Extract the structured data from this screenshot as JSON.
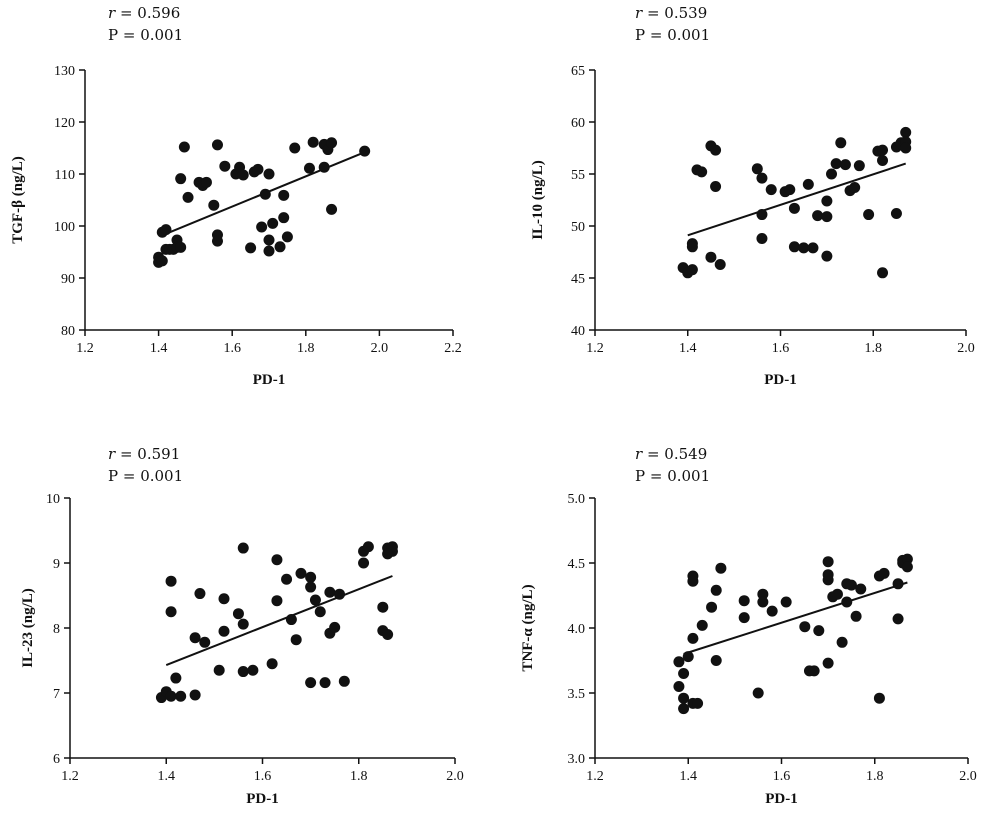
{
  "chart_data": [
    {
      "type": "scatter",
      "title": "",
      "stats": {
        "r_symbol": "r",
        "r_value": "= 0.596",
        "p_text": "P = 0.001"
      },
      "xlabel": "PD-1",
      "ylabel": "TGF-β (ng/L)",
      "xlim": [
        1.2,
        2.2
      ],
      "ylim": [
        80,
        130
      ],
      "xticks": [
        1.2,
        1.4,
        1.6,
        1.8,
        2.0,
        2.2
      ],
      "xtick_labels": [
        "1.2",
        "1.4",
        "1.6",
        "1.8",
        "2.0",
        "2.2"
      ],
      "yticks": [
        80,
        90,
        100,
        110,
        120,
        130
      ],
      "ytick_labels": [
        "80",
        "90",
        "100",
        "110",
        "120",
        "130"
      ],
      "grid": false,
      "fit_line": {
        "x": [
          1.42,
          1.96
        ],
        "y": [
          98.5,
          114.2
        ]
      },
      "points": [
        [
          1.4,
          94.0
        ],
        [
          1.4,
          93.0
        ],
        [
          1.41,
          93.3
        ],
        [
          1.41,
          98.8
        ],
        [
          1.42,
          99.3
        ],
        [
          1.42,
          95.5
        ],
        [
          1.43,
          95.5
        ],
        [
          1.44,
          95.5
        ],
        [
          1.45,
          97.3
        ],
        [
          1.45,
          95.9
        ],
        [
          1.46,
          95.9
        ],
        [
          1.46,
          109.1
        ],
        [
          1.47,
          115.2
        ],
        [
          1.48,
          105.5
        ],
        [
          1.51,
          108.4
        ],
        [
          1.52,
          107.8
        ],
        [
          1.53,
          108.4
        ],
        [
          1.55,
          104.0
        ],
        [
          1.56,
          115.6
        ],
        [
          1.56,
          98.3
        ],
        [
          1.56,
          97.1
        ],
        [
          1.58,
          111.5
        ],
        [
          1.61,
          110.0
        ],
        [
          1.62,
          111.3
        ],
        [
          1.63,
          109.8
        ],
        [
          1.65,
          95.8
        ],
        [
          1.66,
          110.4
        ],
        [
          1.67,
          110.9
        ],
        [
          1.68,
          99.8
        ],
        [
          1.69,
          106.1
        ],
        [
          1.7,
          110.0
        ],
        [
          1.7,
          97.3
        ],
        [
          1.7,
          95.2
        ],
        [
          1.71,
          100.5
        ],
        [
          1.73,
          96.0
        ],
        [
          1.74,
          101.6
        ],
        [
          1.74,
          105.9
        ],
        [
          1.75,
          97.9
        ],
        [
          1.77,
          115.0
        ],
        [
          1.81,
          111.1
        ],
        [
          1.82,
          116.1
        ],
        [
          1.85,
          111.3
        ],
        [
          1.85,
          115.7
        ],
        [
          1.86,
          114.7
        ],
        [
          1.87,
          116.0
        ],
        [
          1.87,
          103.2
        ],
        [
          1.96,
          114.4
        ]
      ]
    },
    {
      "type": "scatter",
      "title": "",
      "stats": {
        "r_symbol": "r",
        "r_value": "= 0.539",
        "p_text": "P = 0.001"
      },
      "xlabel": "PD-1",
      "ylabel": "IL-10 (ng/L)",
      "xlim": [
        1.2,
        2.0
      ],
      "ylim": [
        40,
        65
      ],
      "xticks": [
        1.2,
        1.4,
        1.6,
        1.8,
        2.0
      ],
      "xtick_labels": [
        "1.2",
        "1.4",
        "1.6",
        "1.8",
        "2.0"
      ],
      "yticks": [
        40,
        45,
        50,
        55,
        60,
        65
      ],
      "ytick_labels": [
        "40",
        "45",
        "50",
        "55",
        "60",
        "65"
      ],
      "grid": false,
      "fit_line": {
        "x": [
          1.4,
          1.87
        ],
        "y": [
          49.1,
          56.0
        ]
      },
      "points": [
        [
          1.39,
          46.0
        ],
        [
          1.4,
          45.5
        ],
        [
          1.41,
          45.8
        ],
        [
          1.41,
          48.3
        ],
        [
          1.41,
          48.0
        ],
        [
          1.42,
          55.4
        ],
        [
          1.43,
          55.2
        ],
        [
          1.45,
          47.0
        ],
        [
          1.45,
          57.7
        ],
        [
          1.46,
          57.3
        ],
        [
          1.46,
          53.8
        ],
        [
          1.47,
          46.3
        ],
        [
          1.55,
          55.5
        ],
        [
          1.56,
          54.6
        ],
        [
          1.56,
          51.1
        ],
        [
          1.56,
          48.8
        ],
        [
          1.58,
          53.5
        ],
        [
          1.61,
          53.3
        ],
        [
          1.62,
          53.5
        ],
        [
          1.63,
          51.7
        ],
        [
          1.63,
          48.0
        ],
        [
          1.65,
          47.9
        ],
        [
          1.66,
          54.0
        ],
        [
          1.67,
          47.9
        ],
        [
          1.68,
          51.0
        ],
        [
          1.7,
          52.4
        ],
        [
          1.7,
          50.9
        ],
        [
          1.7,
          47.1
        ],
        [
          1.71,
          55.0
        ],
        [
          1.72,
          56.0
        ],
        [
          1.73,
          58.0
        ],
        [
          1.74,
          55.9
        ],
        [
          1.75,
          53.4
        ],
        [
          1.76,
          53.7
        ],
        [
          1.77,
          55.8
        ],
        [
          1.79,
          51.1
        ],
        [
          1.81,
          57.2
        ],
        [
          1.82,
          57.3
        ],
        [
          1.82,
          56.3
        ],
        [
          1.82,
          45.5
        ],
        [
          1.85,
          57.6
        ],
        [
          1.85,
          51.2
        ],
        [
          1.86,
          58.0
        ],
        [
          1.86,
          57.9
        ],
        [
          1.87,
          59.0
        ],
        [
          1.87,
          58.1
        ],
        [
          1.87,
          57.5
        ]
      ]
    },
    {
      "type": "scatter",
      "title": "",
      "stats": {
        "r_symbol": "r",
        "r_value": "= 0.591",
        "p_text": "P = 0.001"
      },
      "xlabel": "PD-1",
      "ylabel": "IL-23 (ng/L)",
      "xlim": [
        1.2,
        2.0
      ],
      "ylim": [
        6,
        10
      ],
      "xticks": [
        1.2,
        1.4,
        1.6,
        1.8,
        2.0
      ],
      "xtick_labels": [
        "1.2",
        "1.4",
        "1.6",
        "1.8",
        "2.0"
      ],
      "yticks": [
        6,
        7,
        8,
        9,
        10
      ],
      "ytick_labels": [
        "6",
        "7",
        "8",
        "9",
        "10"
      ],
      "grid": false,
      "fit_line": {
        "x": [
          1.4,
          1.87
        ],
        "y": [
          7.43,
          8.8
        ]
      },
      "points": [
        [
          1.39,
          6.93
        ],
        [
          1.4,
          7.02
        ],
        [
          1.41,
          6.95
        ],
        [
          1.41,
          8.72
        ],
        [
          1.41,
          8.25
        ],
        [
          1.42,
          7.23
        ],
        [
          1.43,
          6.95
        ],
        [
          1.46,
          6.97
        ],
        [
          1.46,
          7.85
        ],
        [
          1.47,
          8.53
        ],
        [
          1.48,
          7.78
        ],
        [
          1.51,
          7.35
        ],
        [
          1.52,
          7.95
        ],
        [
          1.52,
          8.45
        ],
        [
          1.55,
          8.22
        ],
        [
          1.56,
          8.06
        ],
        [
          1.56,
          9.23
        ],
        [
          1.56,
          7.33
        ],
        [
          1.58,
          7.35
        ],
        [
          1.62,
          7.45
        ],
        [
          1.63,
          8.42
        ],
        [
          1.63,
          9.05
        ],
        [
          1.65,
          8.75
        ],
        [
          1.66,
          8.13
        ],
        [
          1.67,
          7.82
        ],
        [
          1.68,
          8.84
        ],
        [
          1.7,
          8.78
        ],
        [
          1.7,
          8.63
        ],
        [
          1.7,
          7.16
        ],
        [
          1.71,
          8.43
        ],
        [
          1.72,
          8.25
        ],
        [
          1.73,
          7.16
        ],
        [
          1.74,
          7.92
        ],
        [
          1.74,
          8.55
        ],
        [
          1.75,
          8.01
        ],
        [
          1.76,
          8.52
        ],
        [
          1.77,
          7.18
        ],
        [
          1.81,
          9.0
        ],
        [
          1.81,
          9.18
        ],
        [
          1.82,
          9.25
        ],
        [
          1.85,
          8.32
        ],
        [
          1.85,
          7.96
        ],
        [
          1.86,
          7.9
        ],
        [
          1.86,
          9.23
        ],
        [
          1.87,
          9.18
        ],
        [
          1.87,
          9.25
        ],
        [
          1.86,
          9.14
        ]
      ]
    },
    {
      "type": "scatter",
      "title": "",
      "stats": {
        "r_symbol": "r",
        "r_value": "= 0.549",
        "p_text": "P = 0.001"
      },
      "xlabel": "PD-1",
      "ylabel": "TNF-α (ng/L)",
      "xlim": [
        1.2,
        2.0
      ],
      "ylim": [
        3.0,
        5.0
      ],
      "xticks": [
        1.2,
        1.4,
        1.6,
        1.8,
        2.0
      ],
      "xtick_labels": [
        "1.2",
        "1.4",
        "1.6",
        "1.8",
        "2.0"
      ],
      "yticks": [
        3.0,
        3.5,
        4.0,
        4.5,
        5.0
      ],
      "ytick_labels": [
        "3.0",
        "3.5",
        "4.0",
        "4.5",
        "5.0"
      ],
      "grid": false,
      "fit_line": {
        "x": [
          1.39,
          1.87
        ],
        "y": [
          3.8,
          4.35
        ]
      },
      "points": [
        [
          1.38,
          3.74
        ],
        [
          1.38,
          3.55
        ],
        [
          1.39,
          3.65
        ],
        [
          1.39,
          3.46
        ],
        [
          1.39,
          3.38
        ],
        [
          1.4,
          3.78
        ],
        [
          1.41,
          4.4
        ],
        [
          1.41,
          4.36
        ],
        [
          1.41,
          3.92
        ],
        [
          1.41,
          3.42
        ],
        [
          1.42,
          3.42
        ],
        [
          1.43,
          4.02
        ],
        [
          1.45,
          4.16
        ],
        [
          1.46,
          4.29
        ],
        [
          1.46,
          3.75
        ],
        [
          1.47,
          4.46
        ],
        [
          1.52,
          4.21
        ],
        [
          1.52,
          4.08
        ],
        [
          1.55,
          3.5
        ],
        [
          1.56,
          4.26
        ],
        [
          1.56,
          4.2
        ],
        [
          1.58,
          4.13
        ],
        [
          1.61,
          4.2
        ],
        [
          1.65,
          4.01
        ],
        [
          1.66,
          3.67
        ],
        [
          1.67,
          3.67
        ],
        [
          1.68,
          3.98
        ],
        [
          1.7,
          4.51
        ],
        [
          1.7,
          4.37
        ],
        [
          1.7,
          4.41
        ],
        [
          1.7,
          3.73
        ],
        [
          1.71,
          4.24
        ],
        [
          1.72,
          4.26
        ],
        [
          1.73,
          3.89
        ],
        [
          1.74,
          4.34
        ],
        [
          1.74,
          4.2
        ],
        [
          1.75,
          4.33
        ],
        [
          1.76,
          4.09
        ],
        [
          1.77,
          4.3
        ],
        [
          1.81,
          3.46
        ],
        [
          1.81,
          4.4
        ],
        [
          1.82,
          4.42
        ],
        [
          1.85,
          4.34
        ],
        [
          1.85,
          4.07
        ],
        [
          1.86,
          4.52
        ],
        [
          1.86,
          4.5
        ],
        [
          1.87,
          4.53
        ],
        [
          1.87,
          4.47
        ]
      ]
    }
  ]
}
